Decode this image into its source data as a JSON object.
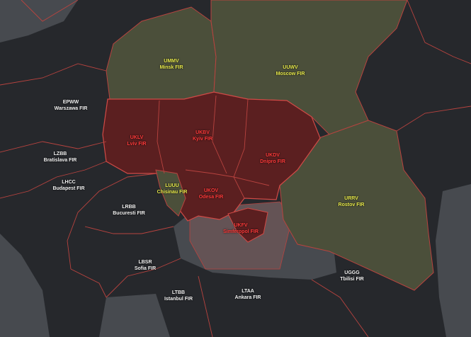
{
  "colors": {
    "land": "#26282c",
    "sea": "#474a4f",
    "border": "#b8433f",
    "ukraine": "#5b1f20",
    "russia_belarus": "#4b4f3a",
    "simferopol_sea": "#6b5556",
    "label_neutral": "#f2f2f2",
    "label_russia": "#e6e84a",
    "label_ukraine": "#ff3a3a"
  },
  "firs": [
    {
      "code": "EPWW",
      "name": "Warszawa FIR",
      "status": "neutral"
    },
    {
      "code": "LZBB",
      "name": "Bratislava FIR",
      "status": "neutral"
    },
    {
      "code": "LHCC",
      "name": "Budapest FIR",
      "status": "neutral"
    },
    {
      "code": "LRBB",
      "name": "Bucuresti FIR",
      "status": "neutral"
    },
    {
      "code": "LBSR",
      "name": "Sofia FIR",
      "status": "neutral"
    },
    {
      "code": "LTBB",
      "name": "Istanbul FIR",
      "status": "neutral"
    },
    {
      "code": "LTAA",
      "name": "Ankara FIR",
      "status": "neutral"
    },
    {
      "code": "UGGG",
      "name": "Tbilisi FIR",
      "status": "neutral"
    },
    {
      "code": "UMMV",
      "name": "Minsk FIR",
      "status": "russia"
    },
    {
      "code": "UUWV",
      "name": "Moscow FIR",
      "status": "russia"
    },
    {
      "code": "URRV",
      "name": "Rostov FIR",
      "status": "russia"
    },
    {
      "code": "LUUU",
      "name": "Chisinau FIR",
      "status": "russia"
    },
    {
      "code": "UKLV",
      "name": "Lviv FIR",
      "status": "ukraine"
    },
    {
      "code": "UKBV",
      "name": "Kyiv FIR",
      "status": "ukraine"
    },
    {
      "code": "UKDV",
      "name": "Dnipro FIR",
      "status": "ukraine"
    },
    {
      "code": "UKOV",
      "name": "Odesa FIR",
      "status": "ukraine"
    },
    {
      "code": "UKFV",
      "name": "Simferopol FIR",
      "status": "ukraine"
    }
  ]
}
